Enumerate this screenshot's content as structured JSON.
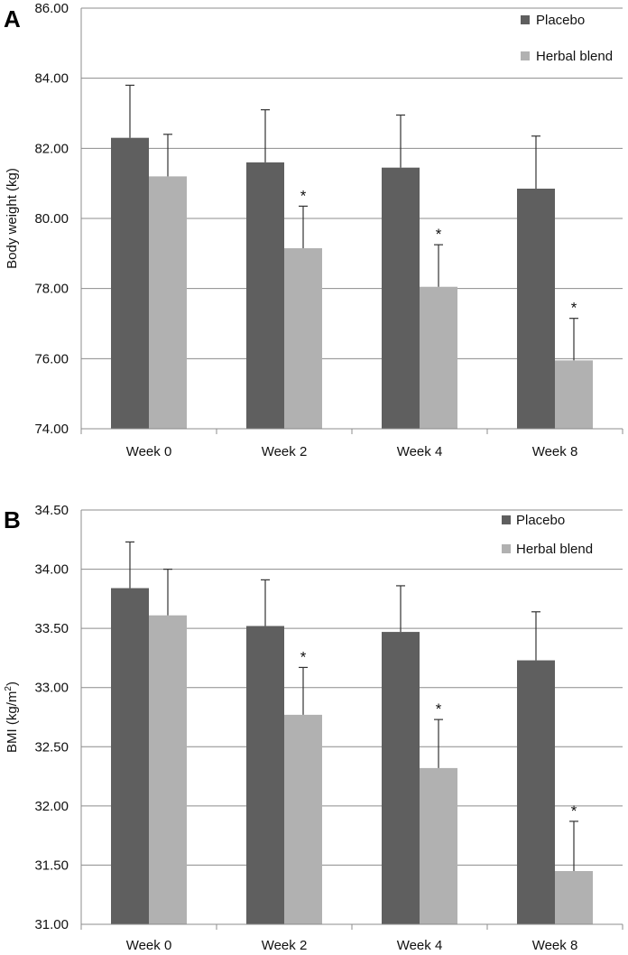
{
  "chart_data": [
    {
      "type": "bar",
      "panel_label": "A",
      "categories": [
        "Week 0",
        "Week 2",
        "Week 4",
        "Week 8"
      ],
      "ylabel": "Body weight (kg)",
      "ylim": [
        74.0,
        86.0
      ],
      "yticks": [
        "74.00",
        "76.00",
        "78.00",
        "80.00",
        "82.00",
        "84.00",
        "86.00"
      ],
      "grid": true,
      "legend_position": "top-right",
      "series": [
        {
          "name": "Placebo",
          "color": "#5f5f5f",
          "values": [
            82.3,
            81.6,
            81.45,
            80.85
          ],
          "errors": [
            1.5,
            1.5,
            1.5,
            1.5
          ],
          "significant": [
            false,
            false,
            false,
            false
          ]
        },
        {
          "name": "Herbal blend",
          "color": "#b1b1b1",
          "values": [
            81.2,
            79.15,
            78.05,
            75.95
          ],
          "errors": [
            1.2,
            1.2,
            1.2,
            1.2
          ],
          "significant": [
            false,
            true,
            true,
            true
          ]
        }
      ],
      "significance_marker": "*"
    },
    {
      "type": "bar",
      "panel_label": "B",
      "categories": [
        "Week 0",
        "Week 2",
        "Week 4",
        "Week 8"
      ],
      "ylabel_main": "BMI (kg/m",
      "ylabel_sup": "2",
      "ylabel_end": ")",
      "ylim": [
        31.0,
        34.5
      ],
      "yticks": [
        "31.00",
        "31.50",
        "32.00",
        "32.50",
        "33.00",
        "33.50",
        "34.00",
        "34.50"
      ],
      "grid": true,
      "legend_position": "top-right",
      "series": [
        {
          "name": "Placebo",
          "color": "#5f5f5f",
          "values": [
            33.84,
            33.52,
            33.47,
            33.23
          ],
          "errors": [
            0.39,
            0.39,
            0.39,
            0.41
          ],
          "significant": [
            false,
            false,
            false,
            false
          ]
        },
        {
          "name": "Herbal blend",
          "color": "#b1b1b1",
          "values": [
            33.61,
            32.77,
            32.32,
            31.45
          ],
          "errors": [
            0.39,
            0.4,
            0.41,
            0.42
          ],
          "significant": [
            false,
            true,
            true,
            true
          ]
        }
      ],
      "significance_marker": "*"
    }
  ]
}
